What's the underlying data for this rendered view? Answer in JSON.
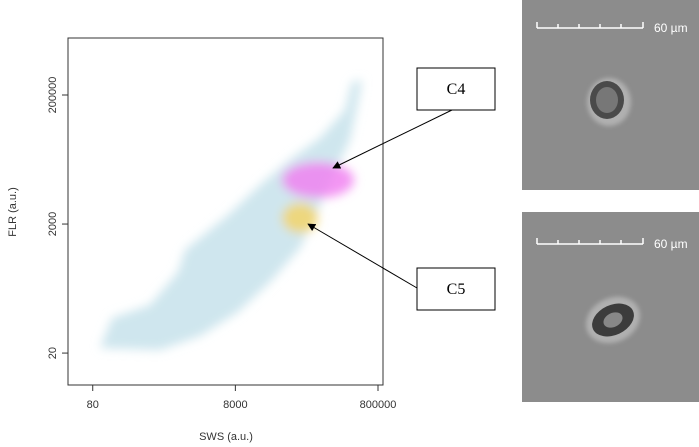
{
  "chart_data": {
    "type": "scatter",
    "xlabel": "SWS (a.u.)",
    "ylabel": "FLR (a.u.)",
    "xscale": "log",
    "yscale": "log",
    "xlim": [
      36,
      940000
    ],
    "ylim": [
      6.4,
      1530000
    ],
    "xticks": [
      80,
      8000,
      800000
    ],
    "yticks": [
      20,
      2000,
      200000
    ],
    "annotations": [
      "C4",
      "C5"
    ]
  },
  "images": [
    {
      "scale_label": "60 µm"
    },
    {
      "scale_label": "60 µm"
    }
  ]
}
